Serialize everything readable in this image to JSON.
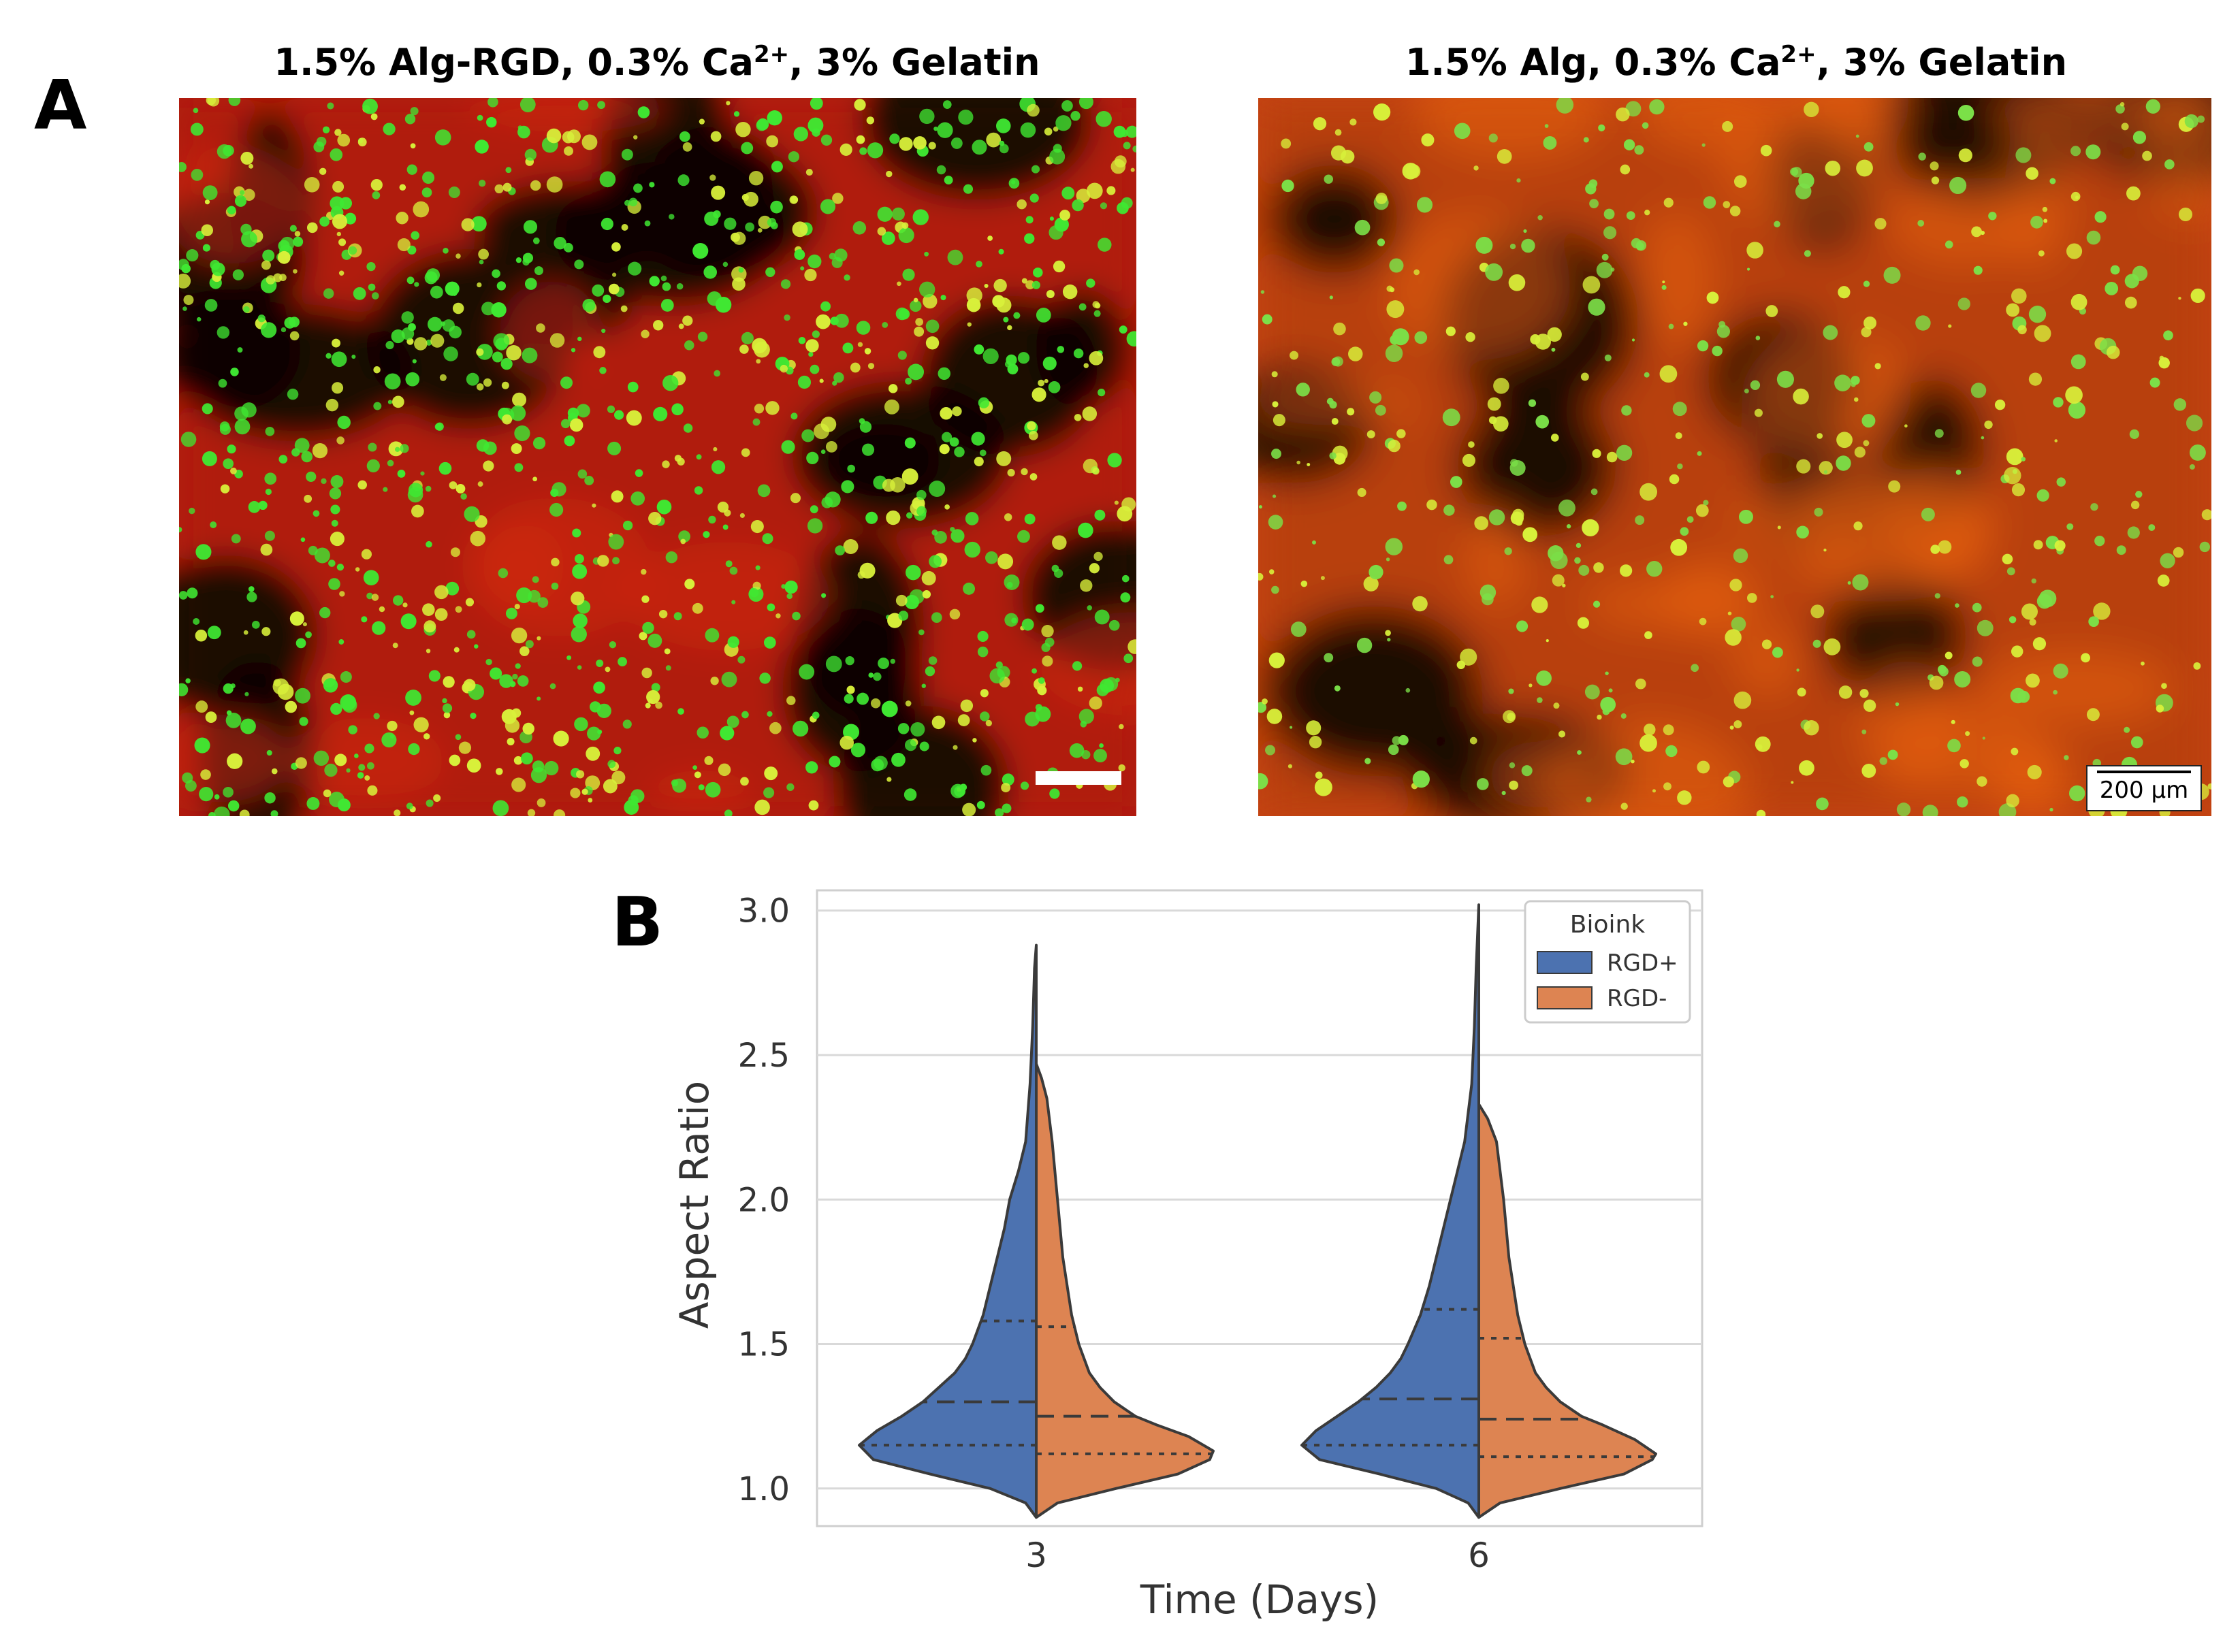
{
  "panel_a": {
    "letter": "A",
    "left_title": "1.5% Alg-RGD, 0.3% Ca",
    "left_title_sup": "2+",
    "left_title_rest": ", 3% Gelatin",
    "right_title": "1.5% Alg, 0.3% Ca",
    "right_title_sup": "2+",
    "right_title_rest": ", 3% Gelatin",
    "scale_label": "200 µm"
  },
  "panel_b": {
    "letter": "B"
  },
  "colors": {
    "rgd_plus": "#4c72b0",
    "rgd_minus": "#dd8452",
    "micro_red": "#b01a08",
    "micro_green": "#3fe832",
    "micro_orange": "#e8600f"
  },
  "chart_data": {
    "type": "violin (split)",
    "xlabel": "Time (Days)",
    "ylabel": "Aspect Ratio",
    "categories": [
      "3",
      "6"
    ],
    "ylim": [
      0.87,
      3.07
    ],
    "yticks": [
      1.0,
      1.5,
      2.0,
      2.5,
      3.0
    ],
    "ytick_labels": [
      "1.0",
      "1.5",
      "2.0",
      "2.5",
      "3.0"
    ],
    "grid": true,
    "legend": {
      "title": "Bioink",
      "position": "top-right",
      "entries": [
        "RGD+",
        "RGD-"
      ]
    },
    "series": [
      {
        "name": "RGD+",
        "side": "left",
        "groups": [
          {
            "category": "3",
            "min": 0.9,
            "max": 2.88,
            "q1": 1.15,
            "median": 1.3,
            "q3": 1.58,
            "density": [
              [
                0.9,
                0
              ],
              [
                0.95,
                0.06
              ],
              [
                1.0,
                0.26
              ],
              [
                1.05,
                0.6
              ],
              [
                1.1,
                0.92
              ],
              [
                1.15,
                1.0
              ],
              [
                1.2,
                0.9
              ],
              [
                1.25,
                0.76
              ],
              [
                1.3,
                0.64
              ],
              [
                1.35,
                0.55
              ],
              [
                1.4,
                0.46
              ],
              [
                1.45,
                0.4
              ],
              [
                1.5,
                0.36
              ],
              [
                1.6,
                0.3
              ],
              [
                1.7,
                0.26
              ],
              [
                1.8,
                0.22
              ],
              [
                1.9,
                0.18
              ],
              [
                2.0,
                0.15
              ],
              [
                2.1,
                0.1
              ],
              [
                2.2,
                0.06
              ],
              [
                2.4,
                0.035
              ],
              [
                2.6,
                0.02
              ],
              [
                2.8,
                0.01
              ],
              [
                2.88,
                0
              ]
            ]
          },
          {
            "category": "6",
            "min": 0.9,
            "max": 3.02,
            "q1": 1.15,
            "median": 1.31,
            "q3": 1.62,
            "density": [
              [
                0.9,
                0
              ],
              [
                0.95,
                0.06
              ],
              [
                1.0,
                0.24
              ],
              [
                1.05,
                0.56
              ],
              [
                1.1,
                0.9
              ],
              [
                1.15,
                1.0
              ],
              [
                1.2,
                0.92
              ],
              [
                1.25,
                0.8
              ],
              [
                1.3,
                0.68
              ],
              [
                1.35,
                0.58
              ],
              [
                1.4,
                0.5
              ],
              [
                1.45,
                0.44
              ],
              [
                1.5,
                0.4
              ],
              [
                1.6,
                0.33
              ],
              [
                1.7,
                0.28
              ],
              [
                1.8,
                0.24
              ],
              [
                1.9,
                0.2
              ],
              [
                2.0,
                0.16
              ],
              [
                2.1,
                0.12
              ],
              [
                2.2,
                0.08
              ],
              [
                2.4,
                0.04
              ],
              [
                2.6,
                0.025
              ],
              [
                2.8,
                0.015
              ],
              [
                3.02,
                0
              ]
            ]
          }
        ]
      },
      {
        "name": "RGD-",
        "side": "right",
        "groups": [
          {
            "category": "3",
            "min": 0.9,
            "max": 2.47,
            "q1": 1.12,
            "median": 1.25,
            "q3": 1.56,
            "density": [
              [
                0.9,
                0
              ],
              [
                0.95,
                0.12
              ],
              [
                1.0,
                0.45
              ],
              [
                1.05,
                0.8
              ],
              [
                1.1,
                0.98
              ],
              [
                1.13,
                1.0
              ],
              [
                1.18,
                0.86
              ],
              [
                1.22,
                0.68
              ],
              [
                1.25,
                0.56
              ],
              [
                1.3,
                0.44
              ],
              [
                1.35,
                0.36
              ],
              [
                1.4,
                0.3
              ],
              [
                1.5,
                0.24
              ],
              [
                1.6,
                0.2
              ],
              [
                1.8,
                0.15
              ],
              [
                2.0,
                0.12
              ],
              [
                2.2,
                0.09
              ],
              [
                2.35,
                0.06
              ],
              [
                2.42,
                0.03
              ],
              [
                2.47,
                0
              ]
            ]
          },
          {
            "category": "6",
            "min": 0.9,
            "max": 2.33,
            "q1": 1.11,
            "median": 1.24,
            "q3": 1.52,
            "density": [
              [
                0.9,
                0
              ],
              [
                0.95,
                0.12
              ],
              [
                1.0,
                0.46
              ],
              [
                1.05,
                0.82
              ],
              [
                1.1,
                0.98
              ],
              [
                1.12,
                1.0
              ],
              [
                1.17,
                0.88
              ],
              [
                1.22,
                0.7
              ],
              [
                1.25,
                0.58
              ],
              [
                1.3,
                0.46
              ],
              [
                1.35,
                0.38
              ],
              [
                1.4,
                0.32
              ],
              [
                1.5,
                0.26
              ],
              [
                1.6,
                0.22
              ],
              [
                1.8,
                0.17
              ],
              [
                2.0,
                0.14
              ],
              [
                2.2,
                0.1
              ],
              [
                2.28,
                0.05
              ],
              [
                2.33,
                0
              ]
            ]
          }
        ]
      }
    ]
  }
}
